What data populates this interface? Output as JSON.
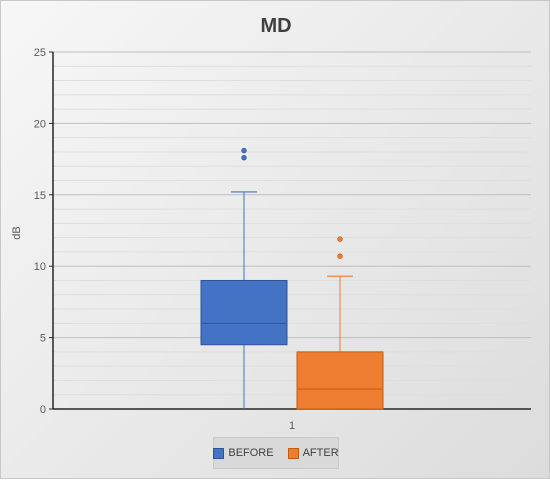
{
  "chart_data": {
    "type": "boxplot",
    "title": "MD",
    "xlabel": "",
    "ylabel": "dB",
    "categories": [
      "1"
    ],
    "ylim": [
      0,
      25
    ],
    "yticks": [
      0,
      5,
      10,
      15,
      20,
      25
    ],
    "grid": true,
    "legend_position": "bottom",
    "series": [
      {
        "name": "BEFORE",
        "color": "#4472c4",
        "min": 0,
        "q1": 4.5,
        "median": 6.0,
        "q3": 9.0,
        "max": 15.2,
        "outliers": [
          17.6,
          18.1
        ]
      },
      {
        "name": "AFTER",
        "color": "#ed7d31",
        "min": 0,
        "q1": 0,
        "median": 1.4,
        "q3": 4.0,
        "max": 9.3,
        "outliers": [
          10.7,
          11.9
        ]
      }
    ]
  }
}
